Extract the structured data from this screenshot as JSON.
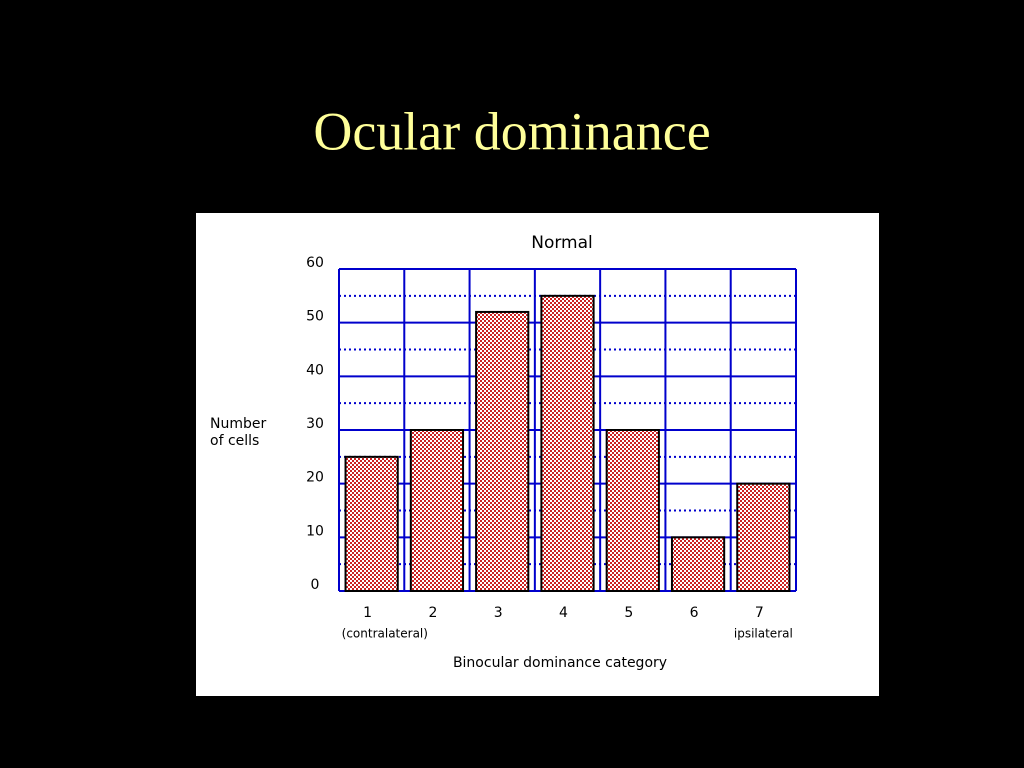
{
  "slide_title": "Ocular dominance",
  "chart_data": {
    "type": "bar",
    "title": "Normal",
    "categories": [
      "1",
      "2",
      "3",
      "4",
      "5",
      "6",
      "7"
    ],
    "category_notes": [
      "(contralateral)",
      null,
      null,
      null,
      null,
      null,
      "ipsilateral"
    ],
    "values": [
      25,
      30,
      52,
      55,
      30,
      10,
      20
    ],
    "color": "#cc2222",
    "ylim": [
      0,
      60
    ],
    "yticks": [
      0,
      10,
      20,
      30,
      40,
      50,
      60
    ],
    "grid": true,
    "ylabel": [
      "Number",
      "of cells"
    ],
    "xlabel": "Binocular dominance category"
  }
}
